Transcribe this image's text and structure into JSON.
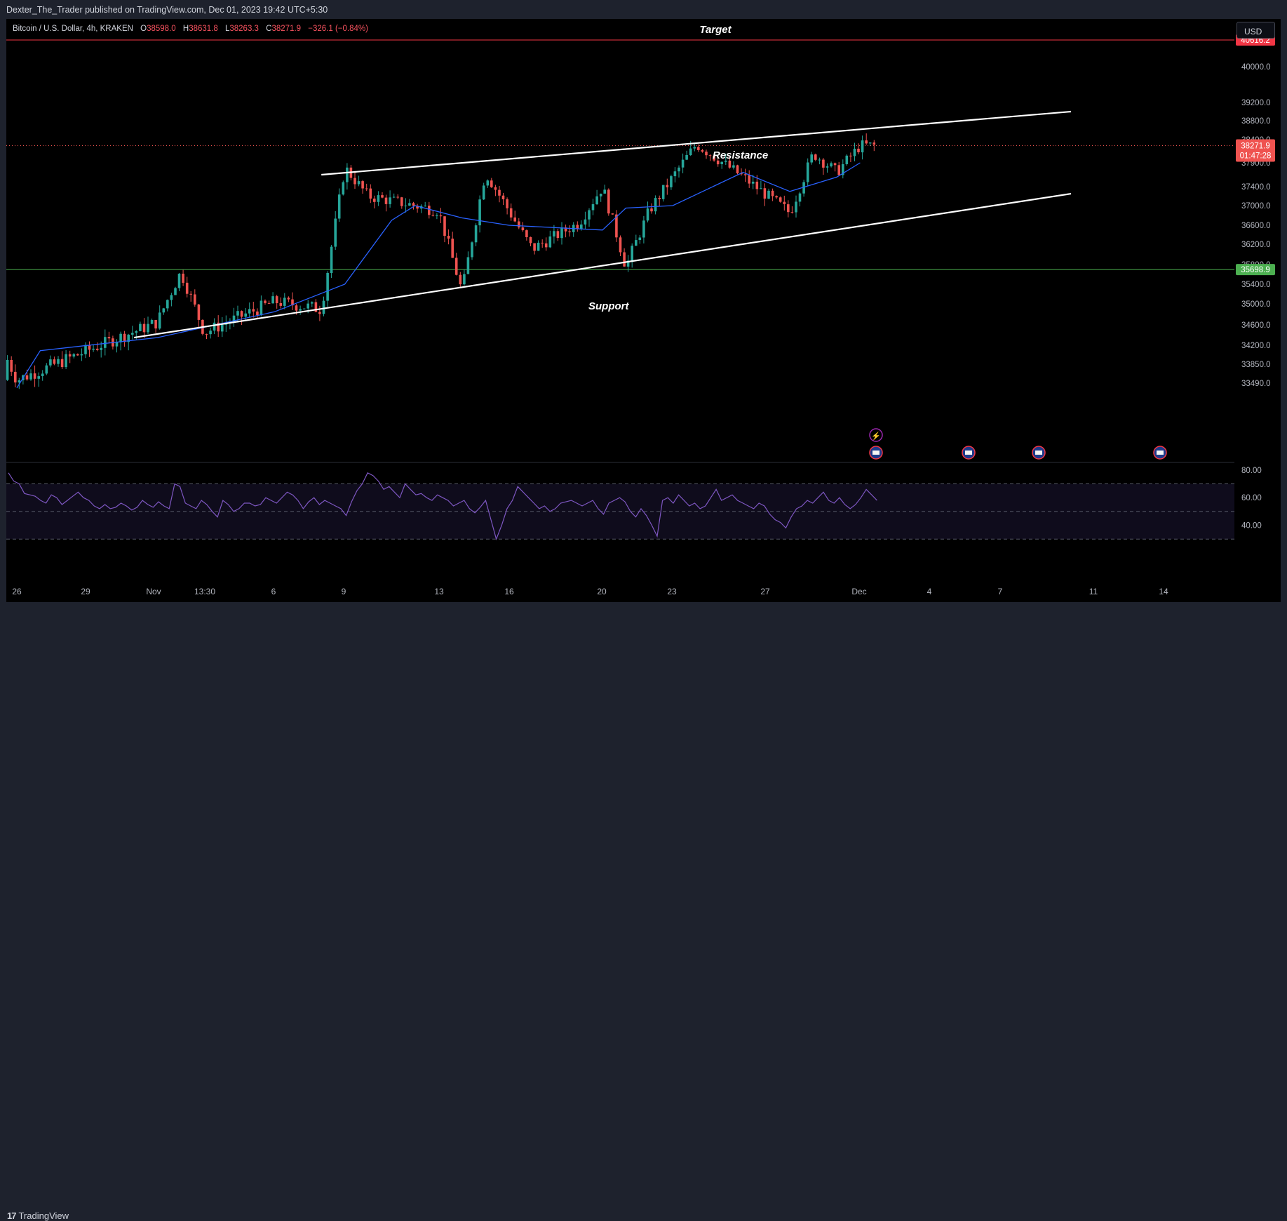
{
  "header": {
    "publish_line": "Dexter_The_Trader published on TradingView.com, Dec 01, 2023 19:42 UTC+5:30"
  },
  "footer": {
    "brand": "TradingView",
    "brand_mark": "17"
  },
  "toolbar": {
    "currency_button": "USD"
  },
  "symbol_legend": {
    "symbol": "Bitcoin / U.S. Dollar, 4h, KRAKEN",
    "open_key": "O",
    "open": "38598.0",
    "high_key": "H",
    "high": "38631.8",
    "low_key": "L",
    "low": "38263.3",
    "close_key": "C",
    "close": "38271.9",
    "change": "−326.1 (−0.84%)"
  },
  "colors": {
    "up": "#26a69a",
    "down": "#ef5350",
    "ma": "#2962ff",
    "rsi": "#7e57c2",
    "target_line": "#f23645",
    "support_line": "#4caf50"
  },
  "chart_data": [
    {
      "type": "candlestick",
      "title": "Bitcoin / U.S. Dollar, 4h, KRAKEN",
      "y_ticks": [
        40000,
        39200,
        38800,
        38400,
        37900,
        37400,
        37000,
        36600,
        36200,
        35800,
        35400,
        35000,
        34600,
        34200,
        33850,
        33490
      ],
      "y_tick_labels": [
        "40000.0",
        "39200.0",
        "38800.0",
        "38400.0",
        "37900.0",
        "37400.0",
        "37000.0",
        "36600.0",
        "36200.0",
        "35800.0",
        "35400.0",
        "35000.0",
        "34600.0",
        "34200.0",
        "33850.0",
        "33490.0"
      ],
      "x_tick_labels": [
        "26",
        "29",
        "Nov",
        "13:30",
        "6",
        "9",
        "13",
        "16",
        "20",
        "23",
        "27",
        "Dec",
        "4",
        "7",
        "11",
        "14"
      ],
      "ylim": [
        33300,
        41200
      ],
      "key_points": [
        {
          "x": "Oct 25",
          "y": 34500
        },
        {
          "x": "Oct 26",
          "y": 33550
        },
        {
          "x": "Oct 29",
          "y": 34100
        },
        {
          "x": "Nov 1",
          "y": 34650
        },
        {
          "x": "Nov 2",
          "y": 35650
        },
        {
          "x": "Nov 3",
          "y": 34450
        },
        {
          "x": "Nov 6",
          "y": 35050
        },
        {
          "x": "Nov 8",
          "y": 34900
        },
        {
          "x": "Nov 9",
          "y": 37800
        },
        {
          "x": "Nov 10",
          "y": 37200
        },
        {
          "x": "Nov 13",
          "y": 36900
        },
        {
          "x": "Nov 14",
          "y": 35250
        },
        {
          "x": "Nov 15",
          "y": 37700
        },
        {
          "x": "Nov 17",
          "y": 36100
        },
        {
          "x": "Nov 19",
          "y": 36650
        },
        {
          "x": "Nov 20",
          "y": 37400
        },
        {
          "x": "Nov 21",
          "y": 35750
        },
        {
          "x": "Nov 22",
          "y": 36900
        },
        {
          "x": "Nov 24",
          "y": 38300
        },
        {
          "x": "Nov 26",
          "y": 37600
        },
        {
          "x": "Nov 28",
          "y": 36850
        },
        {
          "x": "Nov 29",
          "y": 38100
        },
        {
          "x": "Nov 30",
          "y": 37700
        },
        {
          "x": "Dec 1",
          "y": 38271.9
        }
      ],
      "moving_average_points": [
        {
          "x": "Oct 26",
          "y": 33400
        },
        {
          "x": "Oct 27",
          "y": 34100
        },
        {
          "x": "Nov 1",
          "y": 34350
        },
        {
          "x": "Nov 6",
          "y": 34850
        },
        {
          "x": "Nov 9",
          "y": 35400
        },
        {
          "x": "Nov 11",
          "y": 36700
        },
        {
          "x": "Nov 12",
          "y": 37000
        },
        {
          "x": "Nov 14",
          "y": 36750
        },
        {
          "x": "Nov 16",
          "y": 36600
        },
        {
          "x": "Nov 20",
          "y": 36500
        },
        {
          "x": "Nov 21",
          "y": 36950
        },
        {
          "x": "Nov 23",
          "y": 37000
        },
        {
          "x": "Nov 26",
          "y": 37700
        },
        {
          "x": "Nov 28",
          "y": 37300
        },
        {
          "x": "Nov 30",
          "y": 37600
        },
        {
          "x": "Dec 1",
          "y": 37900
        }
      ],
      "horizontal_lines": [
        {
          "label": "40616.2",
          "value": 40616.2,
          "color": "#f23645"
        },
        {
          "label": "35698.9",
          "value": 35698.9,
          "color": "#4caf50"
        }
      ],
      "last_price": {
        "value": "38271.9",
        "countdown": "01:47:28"
      },
      "annotations": [
        "Target",
        "Resistance",
        "Support"
      ],
      "trendlines": [
        {
          "name": "upper",
          "from": {
            "x": "Nov 8",
            "y": 37650
          },
          "to": {
            "x": "Dec 10",
            "y": 39000
          }
        },
        {
          "name": "lower",
          "from": {
            "x": "Oct 31",
            "y": 34350
          },
          "to": {
            "x": "Dec 10",
            "y": 37250
          }
        }
      ]
    },
    {
      "type": "line",
      "title": "",
      "y_tick_labels": [
        "80.00",
        "60.00",
        "40.00"
      ],
      "ylim": [
        25,
        85
      ],
      "band": [
        30,
        70
      ],
      "midline": 50,
      "values": [
        78,
        72,
        70,
        63,
        62,
        61,
        58,
        56,
        62,
        60,
        55,
        58,
        61,
        64,
        60,
        58,
        54,
        52,
        55,
        52,
        53,
        56,
        54,
        51,
        53,
        58,
        55,
        53,
        57,
        54,
        52,
        70,
        68,
        56,
        54,
        52,
        58,
        55,
        50,
        46,
        58,
        55,
        50,
        52,
        56,
        56,
        54,
        55,
        60,
        58,
        56,
        60,
        64,
        62,
        58,
        52,
        57,
        60,
        55,
        58,
        56,
        54,
        52,
        47,
        57,
        65,
        70,
        78,
        76,
        72,
        66,
        68,
        64,
        60,
        70,
        66,
        62,
        63,
        60,
        58,
        62,
        60,
        58,
        54,
        56,
        58,
        52,
        49,
        53,
        58,
        44,
        30,
        40,
        52,
        58,
        68,
        64,
        60,
        56,
        52,
        54,
        50,
        52,
        56,
        57,
        58,
        56,
        54,
        56,
        58,
        52,
        48,
        56,
        58,
        60,
        57,
        50,
        46,
        52,
        47,
        40,
        32,
        58,
        60,
        56,
        62,
        58,
        54,
        56,
        52,
        54,
        60,
        66,
        58,
        60,
        62,
        58,
        56,
        54,
        52,
        56,
        54,
        48,
        44,
        42,
        38,
        46,
        52,
        54,
        58,
        56,
        60,
        64,
        58,
        56,
        60,
        55,
        52,
        55,
        60,
        66,
        62,
        58
      ]
    }
  ]
}
